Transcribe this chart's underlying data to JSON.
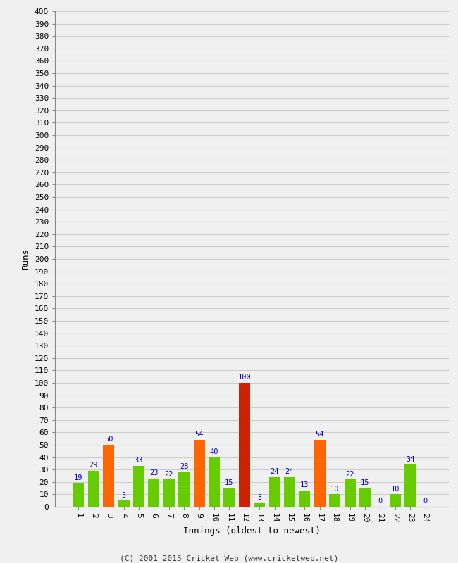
{
  "innings": [
    1,
    2,
    3,
    4,
    5,
    6,
    7,
    8,
    9,
    10,
    11,
    12,
    13,
    14,
    15,
    16,
    17,
    18,
    19,
    20,
    21,
    22,
    23,
    24
  ],
  "values": [
    19,
    29,
    50,
    5,
    33,
    23,
    22,
    28,
    54,
    40,
    15,
    100,
    3,
    24,
    24,
    13,
    54,
    10,
    22,
    15,
    0,
    10,
    34,
    0
  ],
  "colors": [
    "#66cc00",
    "#66cc00",
    "#ff6600",
    "#66cc00",
    "#66cc00",
    "#66cc00",
    "#66cc00",
    "#66cc00",
    "#ff6600",
    "#66cc00",
    "#66cc00",
    "#cc2200",
    "#66cc00",
    "#66cc00",
    "#66cc00",
    "#66cc00",
    "#ff6600",
    "#66cc00",
    "#66cc00",
    "#66cc00",
    "#66cc00",
    "#66cc00",
    "#66cc00",
    "#66cc00"
  ],
  "xlabel": "Innings (oldest to newest)",
  "ylabel": "Runs",
  "ylim": [
    0,
    400
  ],
  "ytick_step": 10,
  "background_color": "#f0f0f0",
  "plot_bg_color": "#f0f0f0",
  "grid_color": "#cccccc",
  "label_color": "#0000cc",
  "footer": "(C) 2001-2015 Cricket Web (www.cricketweb.net)",
  "bar_width": 0.75
}
